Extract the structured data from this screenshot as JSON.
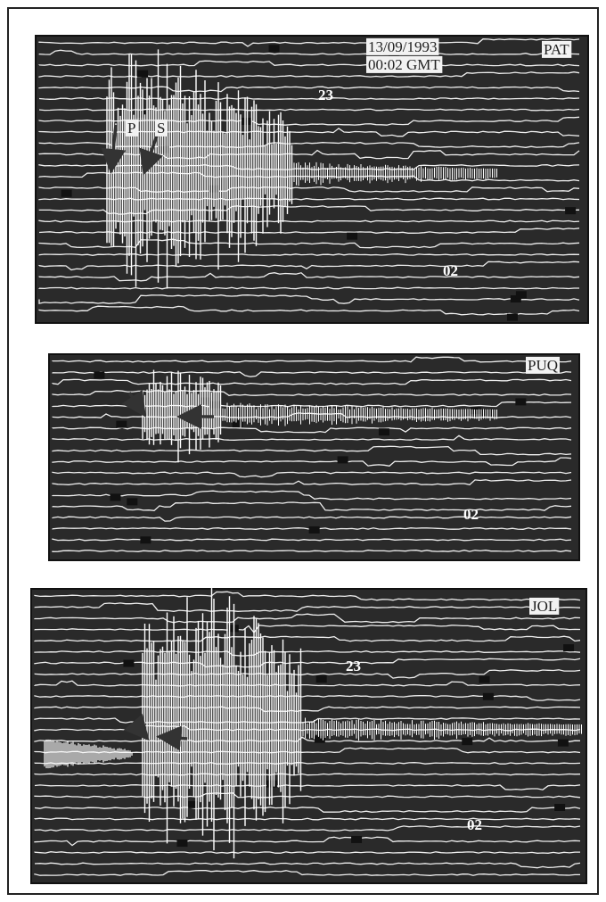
{
  "panels": [
    {
      "station": "PAT",
      "date": "13/09/1993",
      "time": "00:02 GMT",
      "phase_labels": [
        "P",
        "S"
      ],
      "hour_labels": [
        "23",
        "02"
      ]
    },
    {
      "station": "PUQ",
      "hour_labels": [
        "02"
      ]
    },
    {
      "station": "JOL",
      "hour_labels": [
        "23",
        "02"
      ]
    }
  ]
}
